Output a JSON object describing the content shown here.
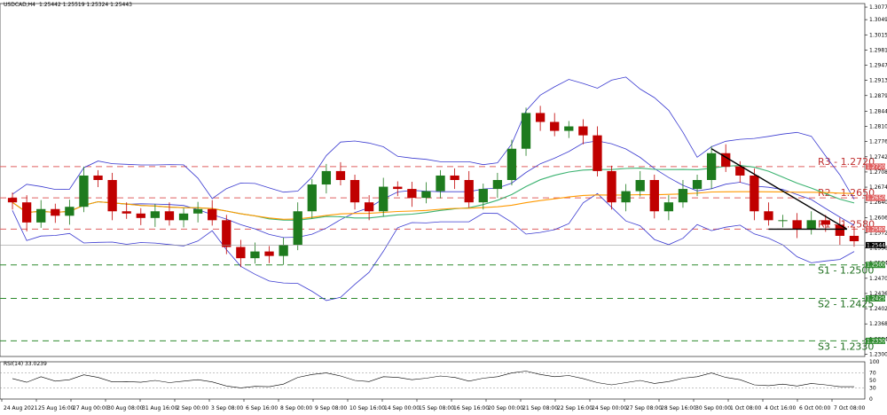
{
  "header": {
    "symbol_info": "USDCAD,H4",
    "ohlc": "1.25442 1.25519 1.25324 1.25443"
  },
  "rsi_header": "RSI(14) 33.0239",
  "colors": {
    "resistance": "#e06060",
    "support": "#2e8b2e",
    "bollinger": "#3a3ad0",
    "ma_green": "#3cb371",
    "ma_orange": "#ff9900",
    "candle_bull": "#1e7b1e",
    "candle_bear": "#c00000",
    "trendline": "#000000"
  },
  "chart_data": [
    {
      "type": "candlestick",
      "symbol": "USDCAD",
      "timeframe": "H4",
      "ylim": [
        1.2295,
        1.3085
      ],
      "y_ticks": [
        "1.30770",
        "1.30490",
        "1.30150",
        "1.29810",
        "1.29470",
        "1.29130",
        "1.28790",
        "1.28440",
        "1.28100",
        "1.27760",
        "1.27420",
        "1.27080",
        "1.26740",
        "1.26400",
        "1.26060",
        "1.25720",
        "1.25380",
        "1.25040",
        "1.24700",
        "1.24360",
        "1.24020",
        "1.23680",
        "1.23340",
        "1.23000"
      ],
      "x_labels": [
        "24 Aug 2021",
        "25 Aug 16:00",
        "27 Aug 00:00",
        "30 Aug 08:00",
        "31 Aug 16:00",
        "2 Sep 00:00",
        "3 Sep 08:00",
        "6 Sep 16:00",
        "8 Sep 00:00",
        "9 Sep 08:00",
        "10 Sep 16:00",
        "14 Sep 00:00",
        "15 Sep 08:00",
        "16 Sep 16:00",
        "20 Sep 00:00",
        "21 Sep 08:00",
        "22 Sep 16:00",
        "24 Sep 00:00",
        "27 Sep 08:00",
        "28 Sep 16:00",
        "30 Sep 00:00",
        "1 Oct 08:00",
        "4 Oct 16:00",
        "6 Oct 00:00",
        "7 Oct 08:00"
      ],
      "close_path": [
        1.264,
        1.2595,
        1.2625,
        1.261,
        1.263,
        1.27,
        1.269,
        1.262,
        1.2615,
        1.2605,
        1.262,
        1.26,
        1.2615,
        1.2625,
        1.26,
        1.254,
        1.2515,
        1.253,
        1.252,
        1.2545,
        1.262,
        1.268,
        1.271,
        1.269,
        1.264,
        1.262,
        1.2675,
        1.267,
        1.265,
        1.2665,
        1.27,
        1.269,
        1.264,
        1.267,
        1.269,
        1.276,
        1.284,
        1.282,
        1.28,
        1.281,
        1.279,
        1.271,
        1.264,
        1.2665,
        1.269,
        1.262,
        1.264,
        1.267,
        1.269,
        1.275,
        1.272,
        1.27,
        1.262,
        1.26,
        1.26,
        1.258,
        1.26,
        1.259,
        1.2565,
        1.2553
      ],
      "current_price": "1.25443",
      "levels": [
        {
          "kind": "resistance",
          "label": "R3 - 1.2720",
          "value": 1.272,
          "axis_tag": "1.27200"
        },
        {
          "kind": "resistance",
          "label": "R2 - 1.2650",
          "value": 1.265,
          "axis_tag": "1.26500"
        },
        {
          "kind": "resistance",
          "label": "R1 - 1.2580",
          "value": 1.258,
          "axis_tag": "1.25800"
        },
        {
          "kind": "support",
          "label": "S1 - 1.2500",
          "value": 1.25,
          "axis_tag": "1.25000"
        },
        {
          "kind": "support",
          "label": "S2 - 1.2425",
          "value": 1.2425,
          "axis_tag": "1.24250"
        },
        {
          "kind": "support",
          "label": "S3 - 1.2330",
          "value": 1.233,
          "axis_tag": "1.23300"
        }
      ],
      "trendline": {
        "from": 1.276,
        "to": 1.258
      }
    },
    {
      "type": "line",
      "title": "RSI(14) 33.0239",
      "ylim": [
        0,
        100
      ],
      "y_ticks": [
        "100",
        "70",
        "50",
        "30",
        "0"
      ],
      "values": [
        55,
        45,
        60,
        48,
        52,
        65,
        58,
        46,
        47,
        45,
        50,
        44,
        48,
        52,
        46,
        35,
        30,
        34,
        33,
        40,
        58,
        66,
        70,
        62,
        50,
        47,
        60,
        58,
        52,
        56,
        62,
        58,
        48,
        56,
        60,
        70,
        75,
        66,
        60,
        63,
        55,
        44,
        38,
        44,
        50,
        42,
        47,
        56,
        60,
        70,
        58,
        52,
        38,
        36,
        40,
        35,
        42,
        38,
        33,
        33
      ]
    }
  ]
}
